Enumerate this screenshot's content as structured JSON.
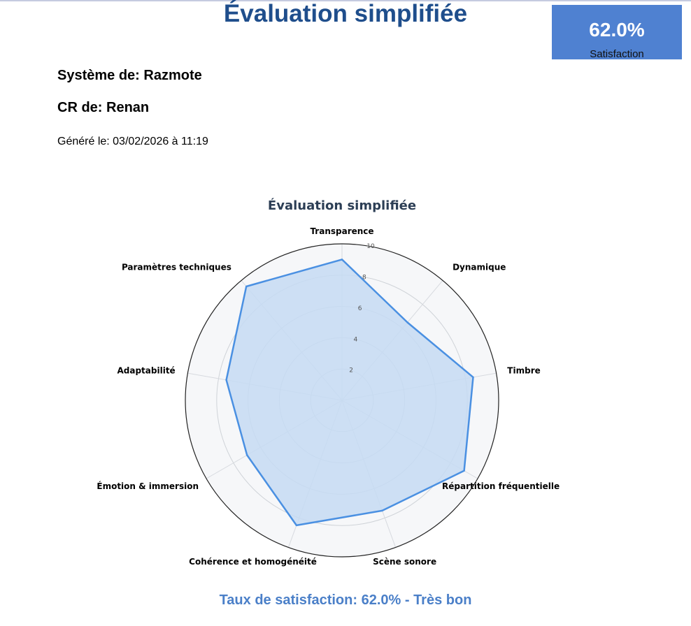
{
  "header": {
    "title": "Évaluation simplifiée",
    "score_value": "62.0%",
    "score_label": "Satisfaction"
  },
  "info": {
    "system": "Système de: Razmote",
    "cr": "CR de: Renan",
    "generated": "Généré le: 03/02/2026 à 11:19"
  },
  "chart_data": {
    "type": "radar",
    "title": "Évaluation simplifiée",
    "categories": [
      "Transparence",
      "Dynamique",
      "Timbre",
      "Répartition fréquentielle",
      "Scène sonore",
      "Cohérence et homogénéité",
      "Émotion & immersion",
      "Adaptabilité",
      "Paramètres techniques"
    ],
    "values": [
      9,
      6.5,
      8.5,
      9,
      7.5,
      8.5,
      7,
      7.5,
      9.5
    ],
    "range": [
      0,
      10
    ],
    "ticks": [
      2,
      4,
      6,
      8,
      10
    ],
    "line_color": "#4a90e2",
    "fill_color": "#c6daf3",
    "background_color": "#f6f7f9",
    "grid": true
  },
  "footer": {
    "text": "Taux de satisfaction: 62.0% - Très bon"
  }
}
